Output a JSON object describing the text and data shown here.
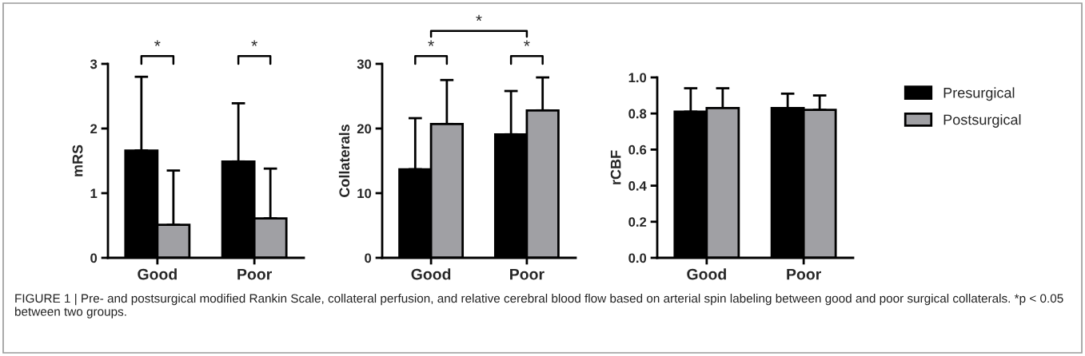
{
  "chart_data": [
    {
      "type": "bar",
      "ylabel": "mRS",
      "categories": [
        "Good",
        "Poor"
      ],
      "ylim": [
        0,
        3
      ],
      "yticks": [
        0,
        1,
        2,
        3
      ],
      "grid": false,
      "series": [
        {
          "color": "#000000",
          "values": [
            1.66,
            1.49
          ],
          "errors": [
            [
              1.66,
              2.8
            ],
            [
              1.49,
              2.39
            ]
          ]
        },
        {
          "color": "#a0a0a4",
          "values": [
            0.51,
            0.61
          ],
          "errors": [
            [
              0.51,
              1.35
            ],
            [
              0.61,
              1.38
            ]
          ]
        }
      ],
      "annotations": [
        "*",
        "*"
      ]
    },
    {
      "type": "bar",
      "ylabel": "Collaterals",
      "categories": [
        "Good",
        "Poor"
      ],
      "ylim": [
        0,
        30
      ],
      "yticks": [
        0,
        10,
        20,
        30
      ],
      "grid": false,
      "series": [
        {
          "color": "#000000",
          "values": [
            13.7,
            19.1
          ],
          "errors": [
            [
              13.7,
              21.6
            ],
            [
              19.1,
              25.8
            ]
          ]
        },
        {
          "color": "#a0a0a4",
          "values": [
            20.7,
            22.8
          ],
          "errors": [
            [
              20.7,
              27.5
            ],
            [
              22.8,
              27.9
            ]
          ]
        }
      ],
      "annotations": [
        "*",
        "*",
        "*"
      ]
    },
    {
      "type": "bar",
      "ylabel": "rCBF",
      "categories": [
        "Good",
        "Poor"
      ],
      "ylim": [
        0,
        1.0
      ],
      "grid": false,
      "legend": "right",
      "yticks": [
        {
          "value": 0,
          "label": "0.0"
        },
        {
          "value": 0.2,
          "label": "0.2"
        },
        {
          "value": 0.4,
          "label": "0.4"
        },
        {
          "value": 0.6,
          "label": "0.6"
        },
        {
          "value": 0.8,
          "label": "0.8"
        },
        {
          "value": 1.0,
          "label": "1.0"
        }
      ],
      "series": [
        {
          "name": "Presurgical",
          "color": "#000000",
          "values": [
            0.81,
            0.83
          ],
          "errors": [
            [
              0.81,
              0.94
            ],
            [
              0.83,
              0.91
            ]
          ]
        },
        {
          "name": "Postsurgical",
          "color": "#a0a0a4",
          "values": [
            0.83,
            0.82
          ],
          "errors": [
            [
              0.83,
              0.94
            ],
            [
              0.82,
              0.9
            ]
          ]
        }
      ]
    },
    {
      "type": "other",
      "annotations": [
        "FIGURE 1 | Pre- and postsurgical modified Rankin Scale, collateral perfusion, and relative cerebral blood flow based on arterial spin labeling between good and poor surgical collaterals. *p < 0.05 between two groups."
      ]
    }
  ]
}
